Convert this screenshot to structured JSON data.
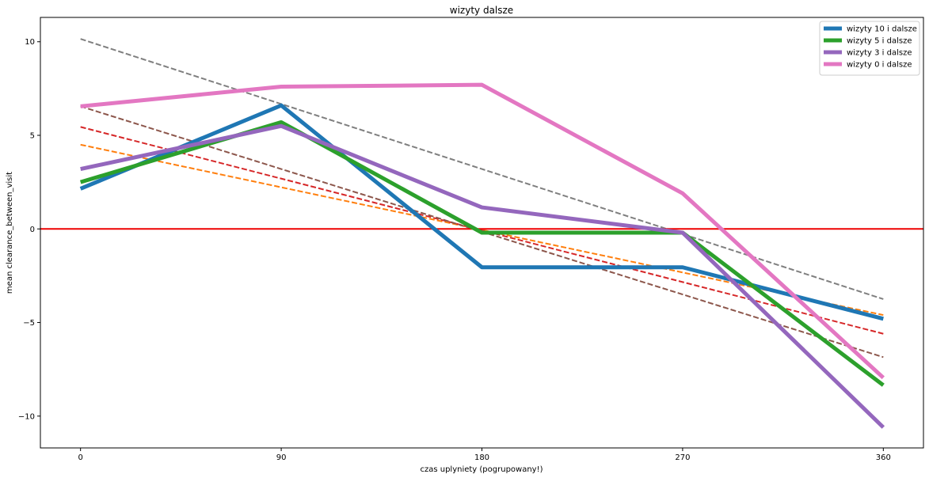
{
  "chart_data": {
    "type": "line",
    "title": "wizyty dalsze",
    "xlabel": "czas uplyniety (pogrupowany!)",
    "ylabel": "mean clearance_between_visit",
    "x": [
      0,
      90,
      180,
      270,
      360
    ],
    "xticks": [
      "0",
      "90",
      "180",
      "270",
      "360"
    ],
    "yticks": [
      -10,
      -5,
      0,
      5,
      10
    ],
    "ytick_labels": [
      "−10",
      "−5",
      "0",
      "5",
      "10"
    ],
    "xlim": [
      -18,
      378
    ],
    "ylim": [
      -11.7,
      11.3
    ],
    "legend_position": "top-right",
    "grid": false,
    "series": [
      {
        "name": "wizyty 10 i dalsze",
        "color": "#1f77b4",
        "values": [
          2.15,
          6.6,
          -2.05,
          -2.05,
          -4.8
        ]
      },
      {
        "name": "wizyty 5 i dalsze",
        "color": "#2ca02c",
        "values": [
          2.5,
          5.7,
          -0.2,
          -0.2,
          -8.35
        ]
      },
      {
        "name": "wizyty 3 i dalsze",
        "color": "#9467bd",
        "values": [
          3.2,
          5.5,
          1.15,
          -0.2,
          -10.6
        ]
      },
      {
        "name": "wizyty 0 i dalsze",
        "color": "#e377c2",
        "values": [
          6.55,
          7.6,
          7.7,
          1.9,
          -7.95
        ]
      }
    ],
    "trend_lines": [
      {
        "color": "#ff7f0e",
        "values": [
          4.5,
          -4.6
        ]
      },
      {
        "color": "#d62728",
        "values": [
          5.45,
          -5.6
        ]
      },
      {
        "color": "#8c564b",
        "values": [
          6.55,
          -6.85
        ]
      },
      {
        "color": "#7f7f7f",
        "values": [
          10.15,
          -3.75
        ]
      }
    ],
    "reference_line": {
      "y": 0,
      "color": "#ee0000"
    }
  }
}
